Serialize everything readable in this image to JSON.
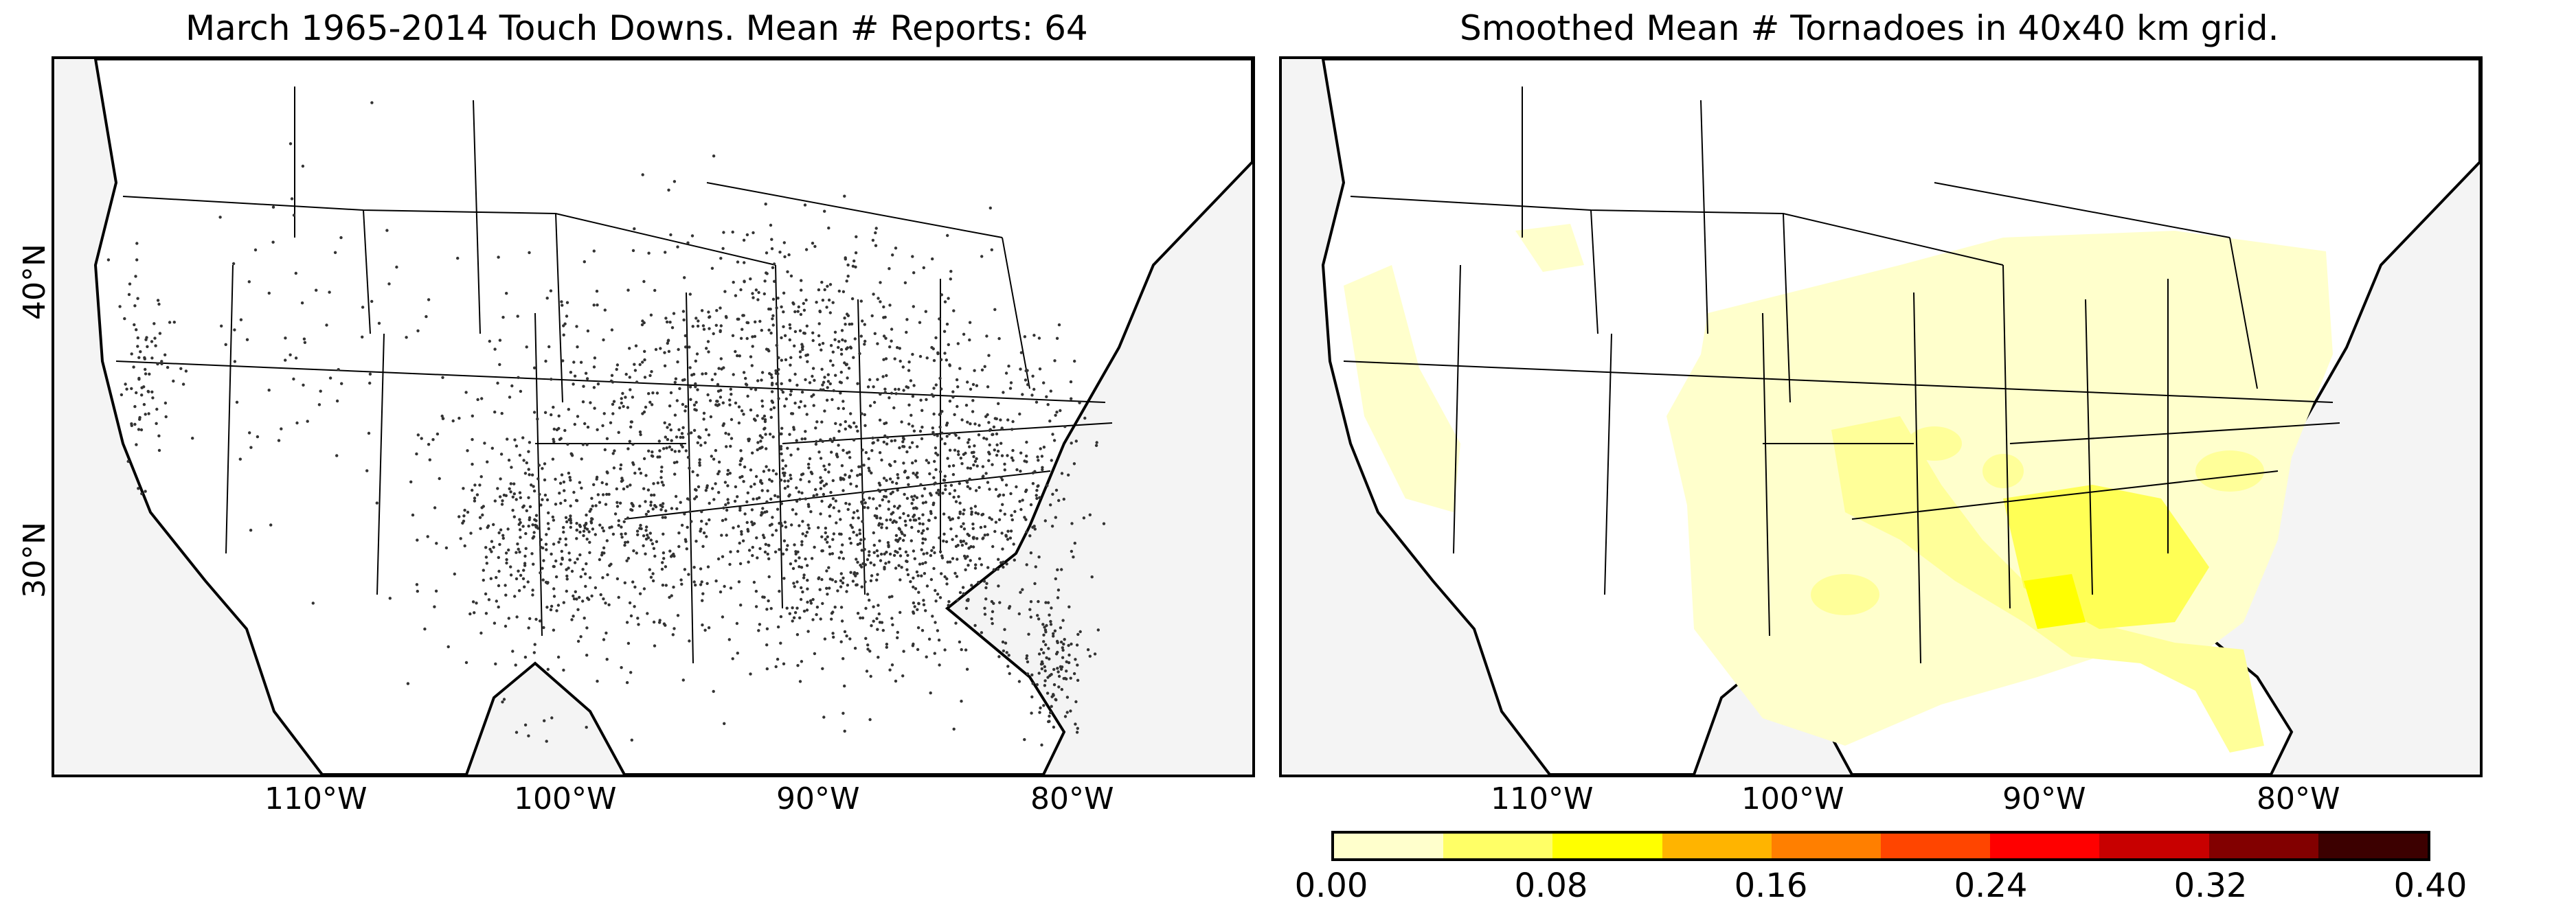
{
  "panels": {
    "left": {
      "title": "March 1965-2014 Touch Downs. Mean # Reports: 64",
      "lon_ticks": [
        "110°W",
        "100°W",
        "90°W",
        "80°W"
      ],
      "lat_ticks": [
        "40°N",
        "30°N"
      ]
    },
    "right": {
      "title": "Smoothed Mean # Tornadoes in 40x40 km grid.",
      "lon_ticks": [
        "110°W",
        "100°W",
        "90°W",
        "80°W"
      ]
    }
  },
  "colorbar": {
    "ticks": [
      "0.00",
      "0.08",
      "0.16",
      "0.24",
      "0.32",
      "0.40"
    ],
    "colors": [
      "#ffffcc",
      "#ffff66",
      "#ffff00",
      "#ffb400",
      "#ff7f00",
      "#ff4500",
      "#ff0000",
      "#c80000",
      "#820000",
      "#3c0000"
    ]
  },
  "colors": {
    "land": "#ffffff",
    "ocean": "#f4f4f4",
    "border": "#000000",
    "dots": "#333333",
    "density_low": "#ffffcc",
    "density_mid": "#ffff99",
    "density_high": "#ffff55"
  }
}
